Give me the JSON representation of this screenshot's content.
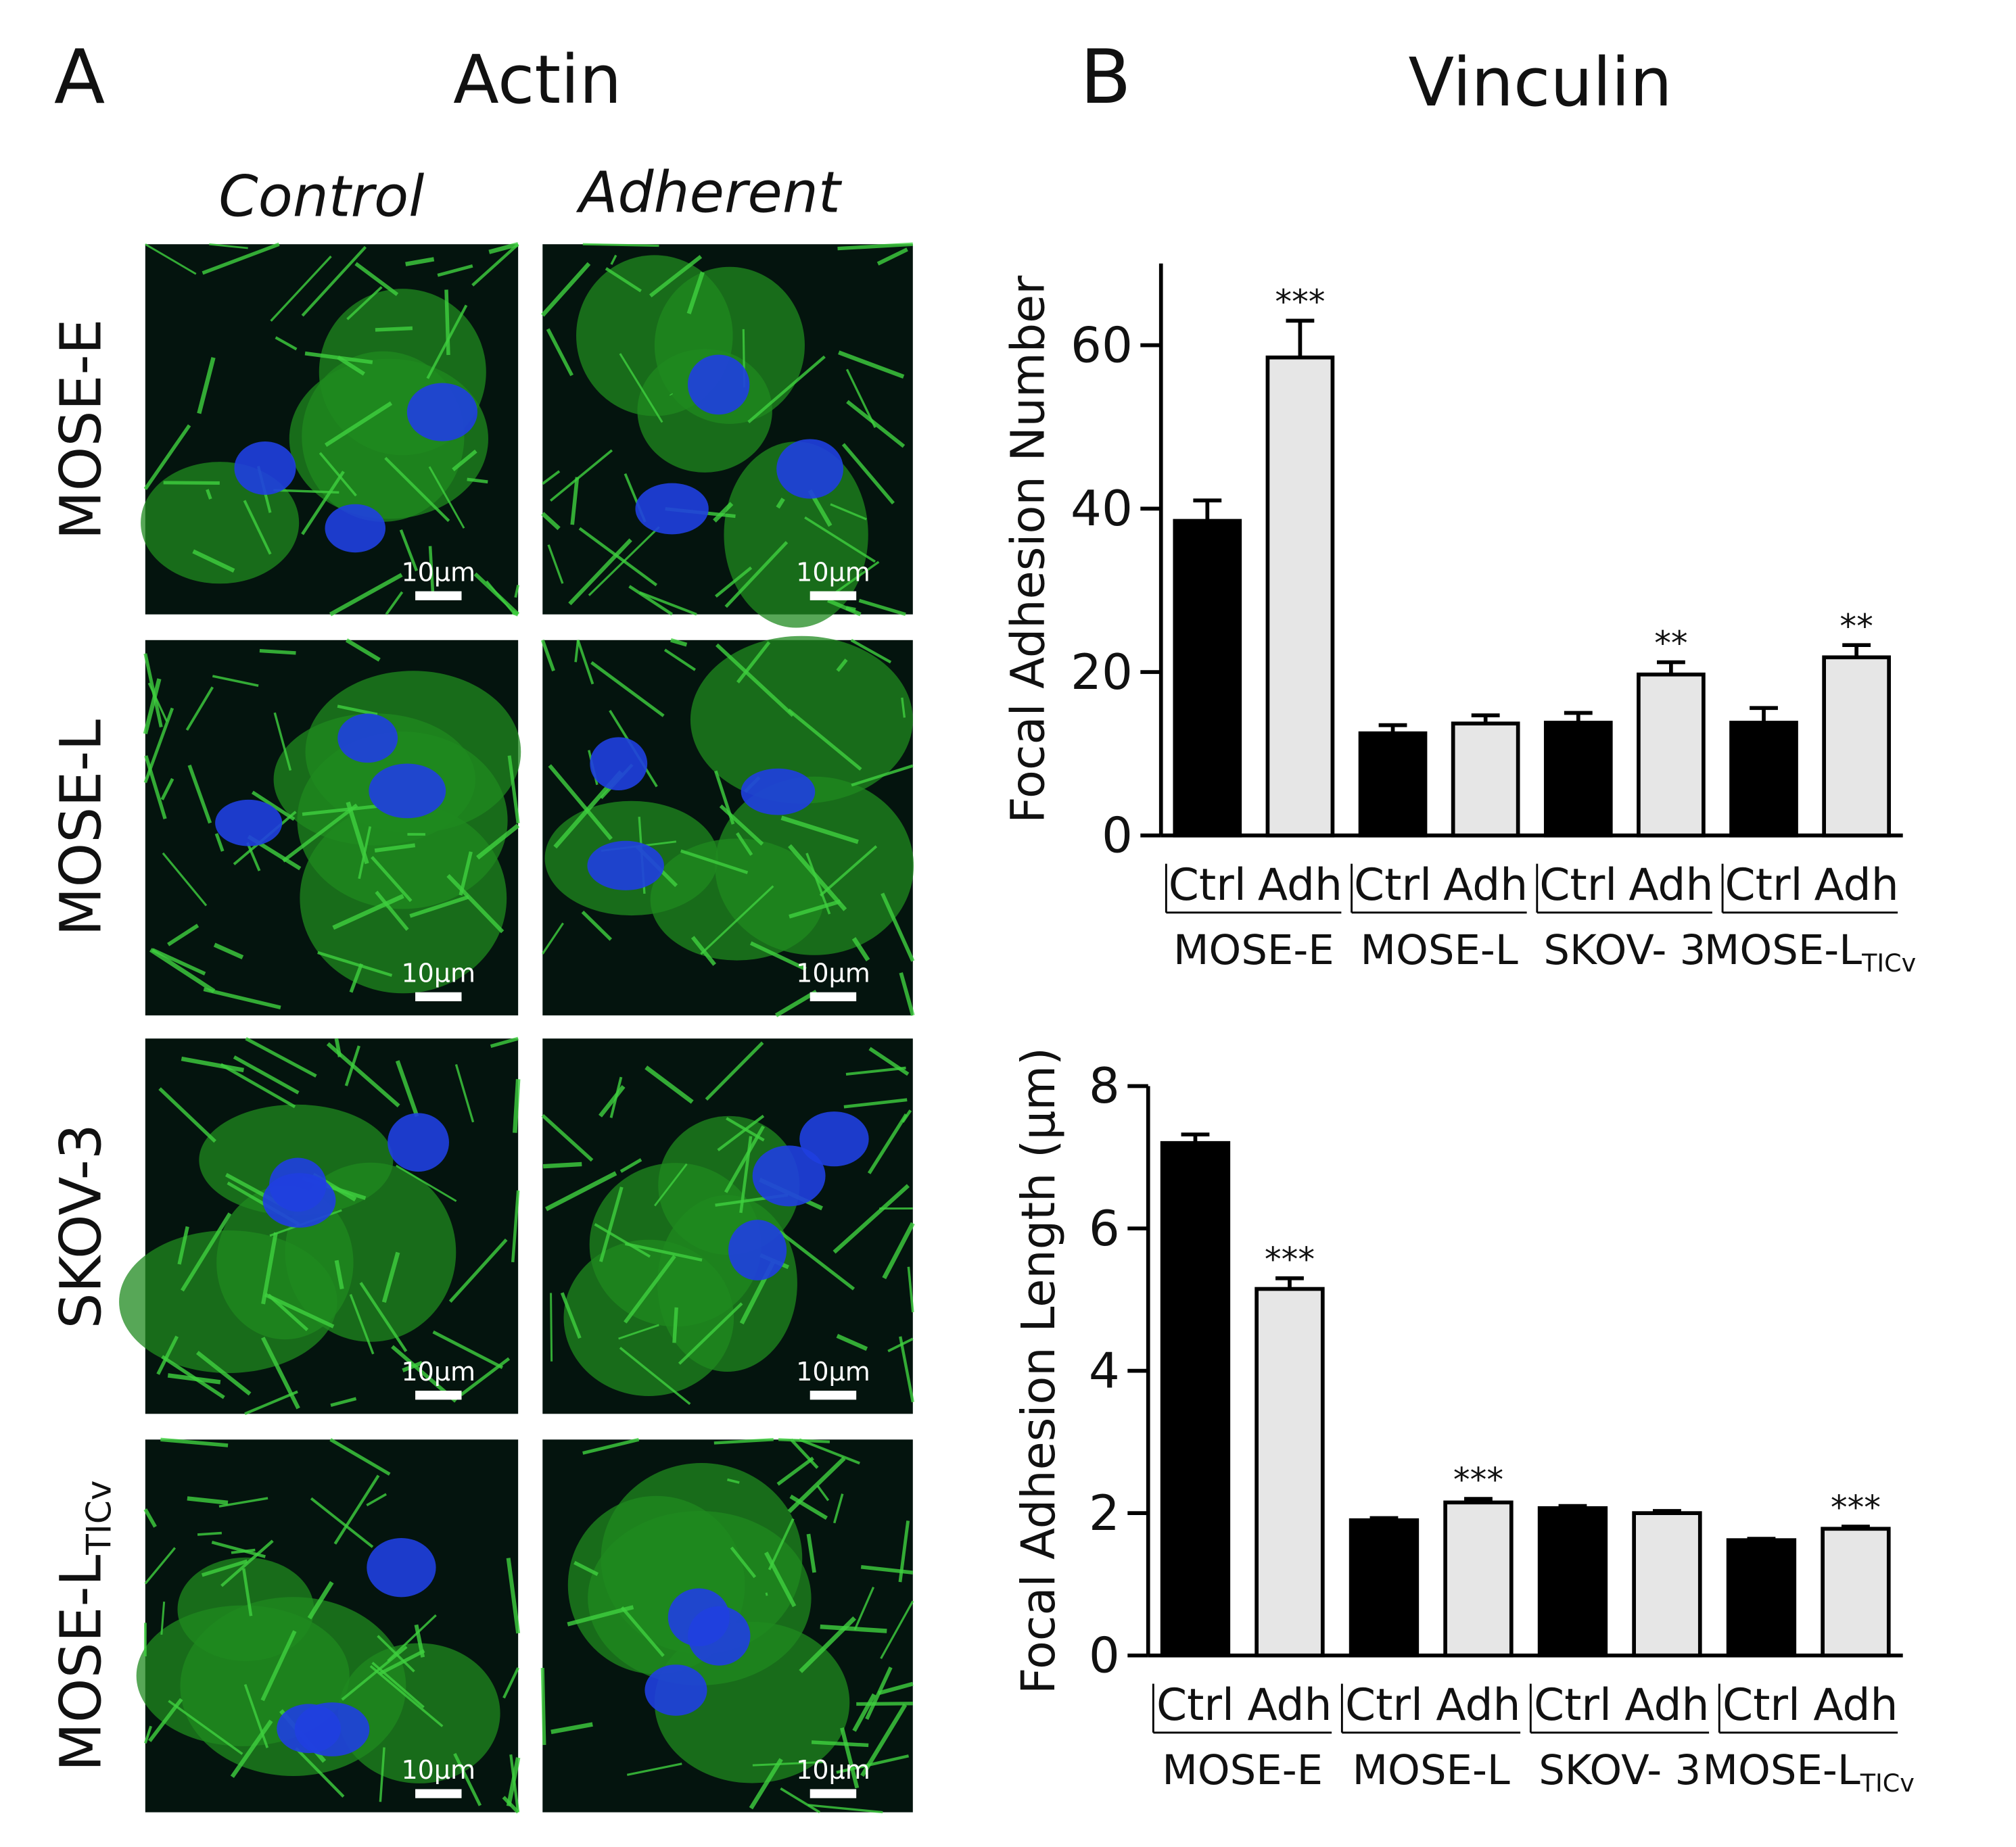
{
  "panel_a": {
    "letter": "A",
    "title": "Actin",
    "columns": [
      "Control",
      "Adherent"
    ],
    "rows": [
      "MOSE-E",
      "MOSE-L",
      "SKOV-3",
      "MOSE-L"
    ],
    "row_subscripts": [
      null,
      null,
      null,
      "TICv"
    ],
    "scale_bar_label": "10µm"
  },
  "panel_b": {
    "letter": "B",
    "title": "Vinculin"
  },
  "chart_data": [
    {
      "type": "bar",
      "y_label": "Focal Adhesion Number",
      "categories": [
        "Ctrl",
        "Adh",
        "Ctrl",
        "Adh",
        "Ctrl",
        "Adh",
        "Ctrl",
        "Adh"
      ],
      "groups": [
        "MOSE-E",
        "MOSE-L",
        "SKOV- 3",
        "MOSE-L"
      ],
      "group_subscripts": [
        null,
        null,
        null,
        "TICv"
      ],
      "values": [
        38.5,
        58.5,
        12.5,
        13.7,
        13.8,
        19.7,
        13.8,
        21.8
      ],
      "errors": [
        2.5,
        4.5,
        1,
        1,
        1.2,
        1.5,
        1.8,
        1.5
      ],
      "annotations": [
        "",
        "***",
        null,
        null,
        null,
        "**",
        null,
        "**"
      ],
      "colors": [
        "#000000",
        "#e6e6e6"
      ],
      "ylim": [
        0,
        70
      ],
      "yticks": [
        0,
        20,
        40,
        60
      ]
    },
    {
      "type": "bar",
      "y_label": "Focal Adhesion Length (µm)",
      "categories": [
        "Ctrl",
        "Adh",
        "Ctrl",
        "Adh",
        "Ctrl",
        "Adh",
        "Ctrl",
        "Adh"
      ],
      "groups": [
        "MOSE-E",
        "MOSE-L",
        "SKOV- 3",
        "MOSE-L"
      ],
      "group_subscripts": [
        null,
        null,
        null,
        "TICv"
      ],
      "values": [
        7.2,
        5.15,
        1.9,
        2.15,
        2.07,
        2.0,
        1.62,
        1.78
      ],
      "errors": [
        0.12,
        0.15,
        0.03,
        0.05,
        0.03,
        0.03,
        0.02,
        0.03
      ],
      "annotations": [
        null,
        "***",
        null,
        "***",
        null,
        null,
        null,
        "***"
      ],
      "colors": [
        "#000000",
        "#e6e6e6"
      ],
      "ylim": [
        0,
        8
      ],
      "yticks": [
        0,
        2,
        4,
        6,
        8
      ]
    }
  ]
}
